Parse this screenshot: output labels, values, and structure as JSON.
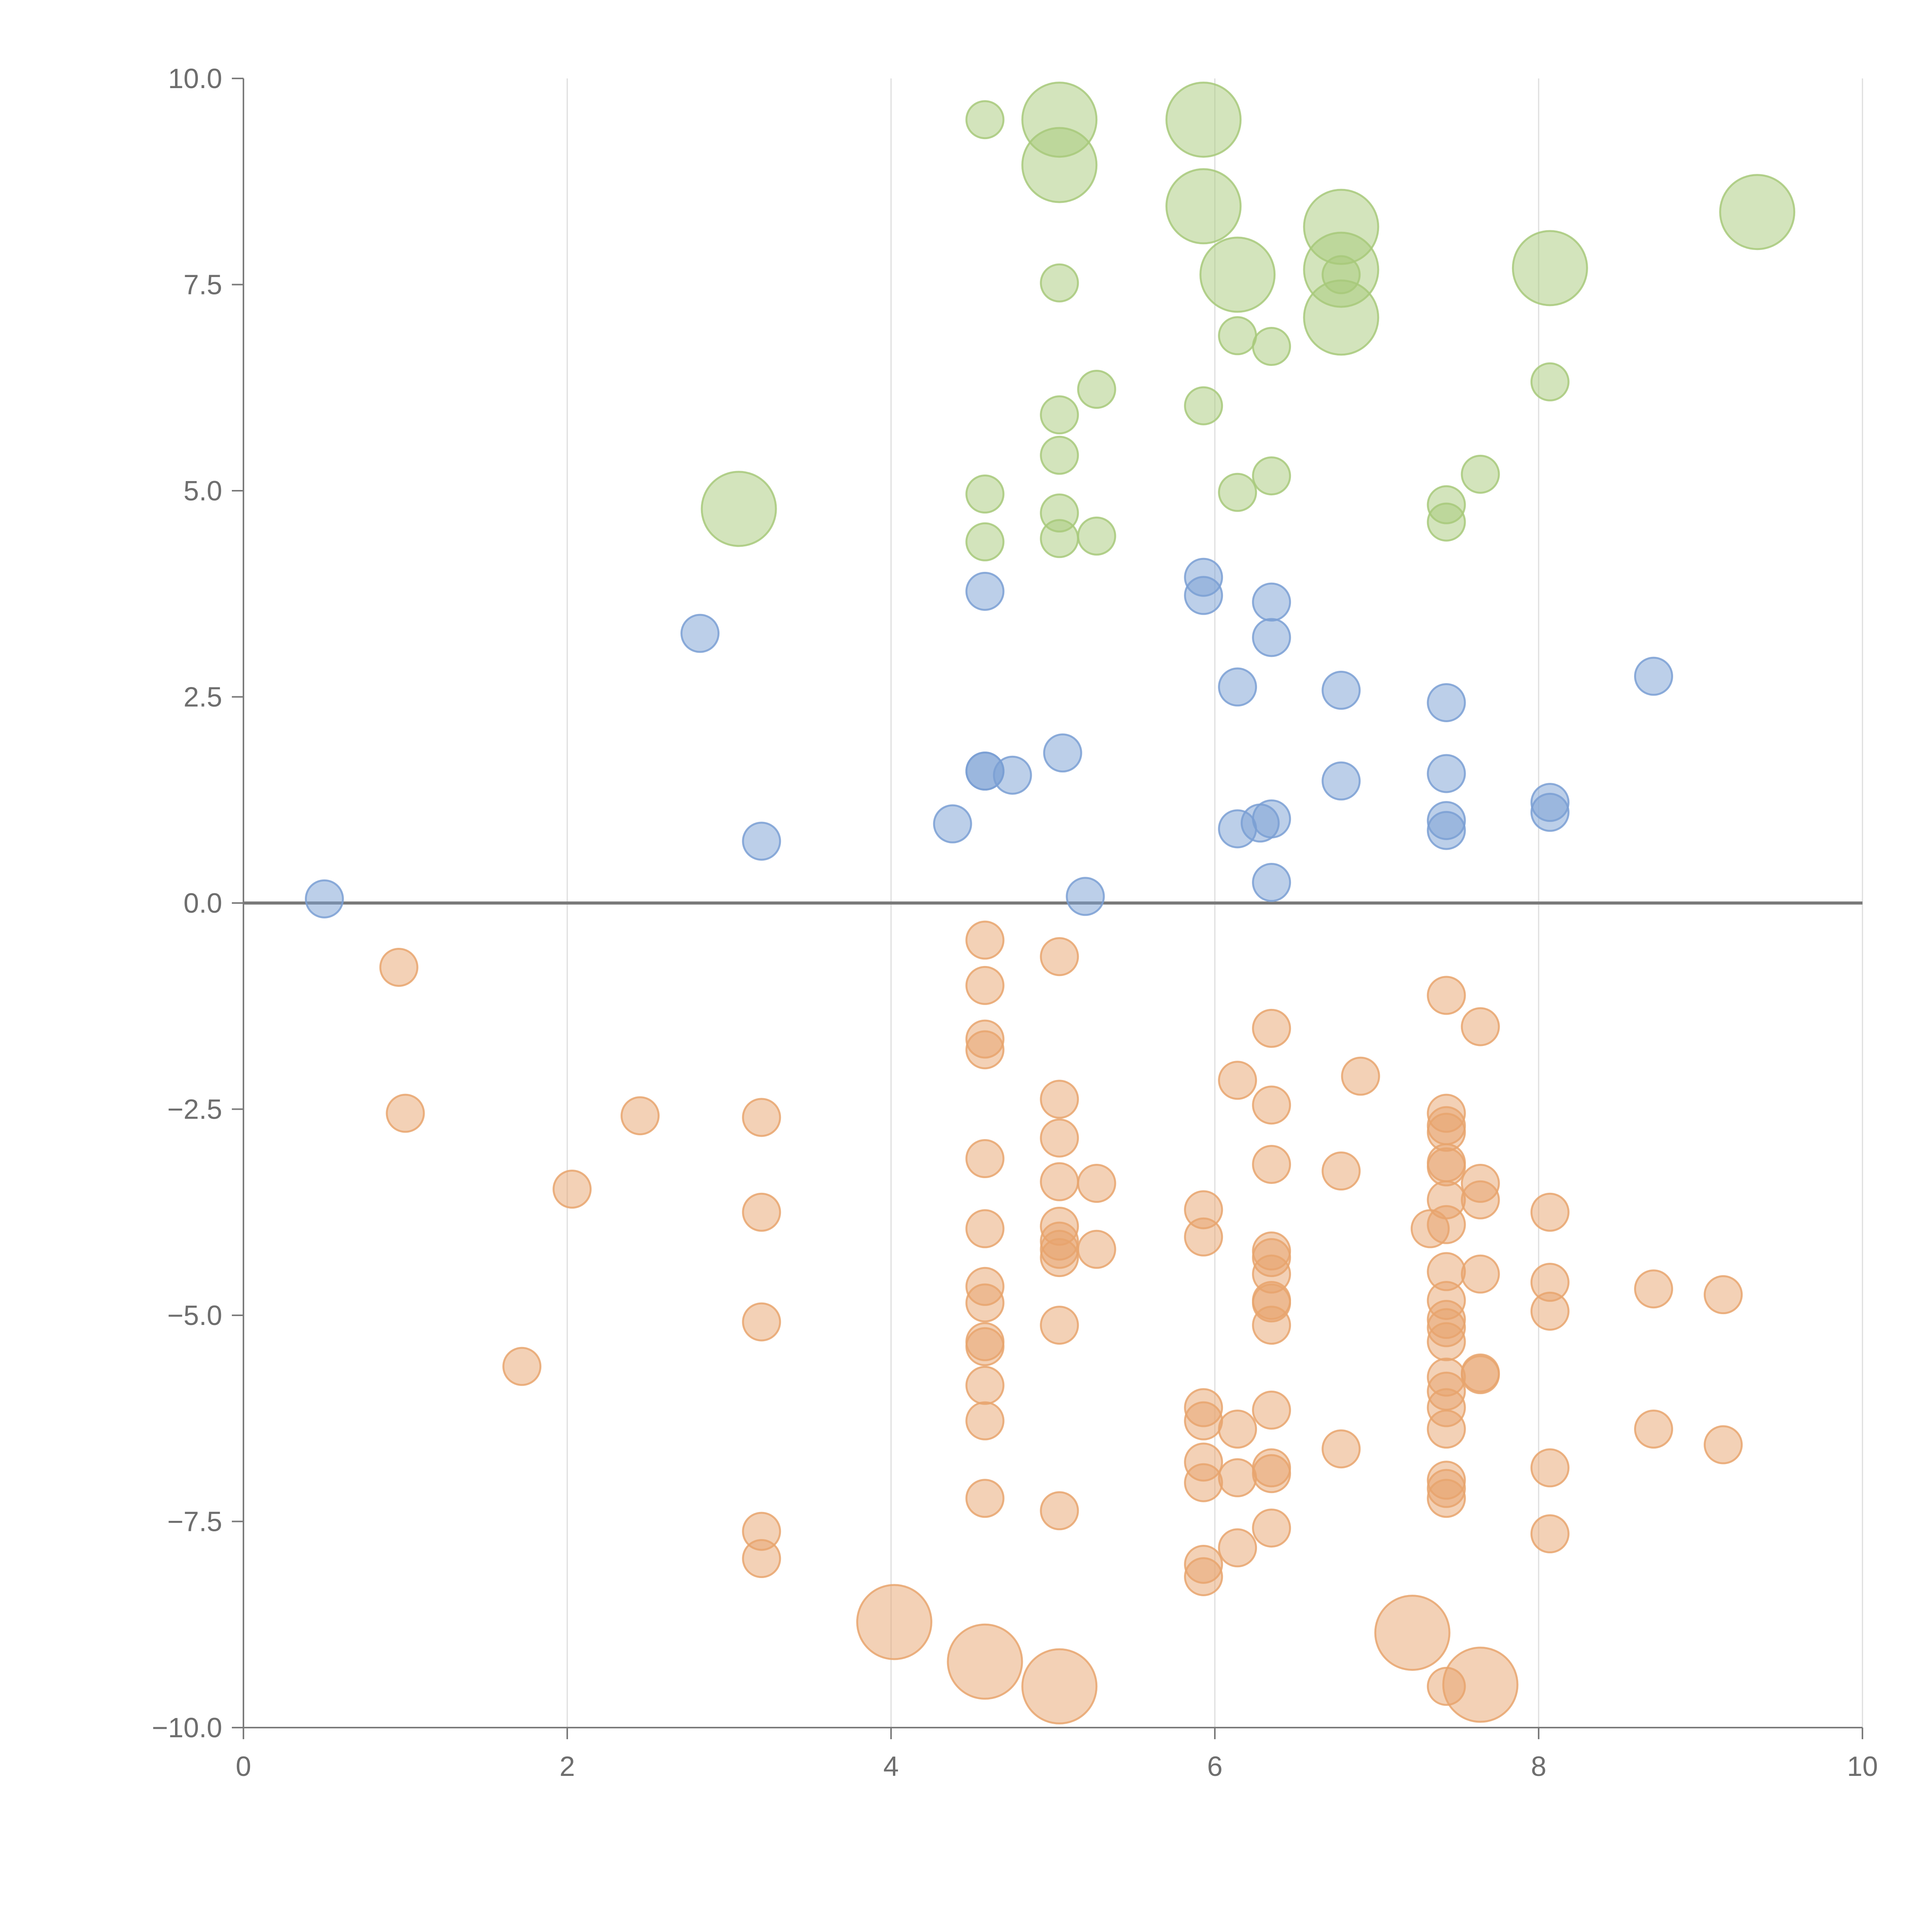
{
  "chart_data": {
    "type": "scatter",
    "title": "",
    "xlabel": "",
    "ylabel": "",
    "xlim": [
      0,
      10
    ],
    "ylim": [
      -10,
      10
    ],
    "x_ticks": [
      "0",
      "2",
      "4",
      "6",
      "8",
      "10"
    ],
    "x_tick_values": [
      0,
      2,
      4,
      6,
      8,
      10
    ],
    "y_ticks": [
      "10.0",
      "7.5",
      "5.0",
      "2.5",
      "0.0",
      "−2.5",
      "−5.0",
      "−7.5",
      "−10.0"
    ],
    "y_tick_values": [
      10,
      7.5,
      5,
      2.5,
      0,
      -2.5,
      -5,
      -7.5,
      -10
    ],
    "grid": "vertical lines at x ticks",
    "reference_line_y": 0,
    "colors": {
      "green": "#a7c97a",
      "blue": "#7a9fd3",
      "orange": "#e8a46d",
      "axis": "#7a7a7a",
      "grid": "#dddddd"
    },
    "series": [
      {
        "color": "green",
        "points": [
          {
            "x": 4.58,
            "y": 9.5,
            "s": 1
          },
          {
            "x": 5.04,
            "y": 9.5,
            "s": 2
          },
          {
            "x": 5.04,
            "y": 8.95,
            "s": 2
          },
          {
            "x": 5.93,
            "y": 9.5,
            "s": 2
          },
          {
            "x": 5.93,
            "y": 8.45,
            "s": 2
          },
          {
            "x": 6.14,
            "y": 7.62,
            "s": 2
          },
          {
            "x": 6.78,
            "y": 8.2,
            "s": 2
          },
          {
            "x": 6.78,
            "y": 7.68,
            "s": 2
          },
          {
            "x": 6.78,
            "y": 7.62,
            "s": 1
          },
          {
            "x": 6.78,
            "y": 7.1,
            "s": 2
          },
          {
            "x": 8.07,
            "y": 7.7,
            "s": 2
          },
          {
            "x": 9.35,
            "y": 8.38,
            "s": 2
          },
          {
            "x": 5.04,
            "y": 7.52,
            "s": 1
          },
          {
            "x": 6.14,
            "y": 6.88,
            "s": 1
          },
          {
            "x": 6.35,
            "y": 6.75,
            "s": 1
          },
          {
            "x": 5.27,
            "y": 6.23,
            "s": 1
          },
          {
            "x": 5.93,
            "y": 6.03,
            "s": 1
          },
          {
            "x": 5.04,
            "y": 5.92,
            "s": 1
          },
          {
            "x": 8.07,
            "y": 6.32,
            "s": 1
          },
          {
            "x": 5.04,
            "y": 5.43,
            "s": 1
          },
          {
            "x": 6.35,
            "y": 5.18,
            "s": 1
          },
          {
            "x": 7.64,
            "y": 5.2,
            "s": 1
          },
          {
            "x": 3.06,
            "y": 4.78,
            "s": 2
          },
          {
            "x": 4.58,
            "y": 4.96,
            "s": 1
          },
          {
            "x": 6.14,
            "y": 4.98,
            "s": 1
          },
          {
            "x": 5.04,
            "y": 4.73,
            "s": 1
          },
          {
            "x": 7.43,
            "y": 4.83,
            "s": 1
          },
          {
            "x": 7.43,
            "y": 4.62,
            "s": 1
          },
          {
            "x": 4.58,
            "y": 4.38,
            "s": 1
          },
          {
            "x": 5.04,
            "y": 4.42,
            "s": 1
          },
          {
            "x": 5.27,
            "y": 4.45,
            "s": 1
          }
        ]
      },
      {
        "color": "blue",
        "points": [
          {
            "x": 5.93,
            "y": 3.95,
            "s": 1
          },
          {
            "x": 5.93,
            "y": 3.73,
            "s": 1
          },
          {
            "x": 4.58,
            "y": 3.78,
            "s": 1
          },
          {
            "x": 6.35,
            "y": 3.65,
            "s": 1
          },
          {
            "x": 6.35,
            "y": 3.22,
            "s": 1
          },
          {
            "x": 2.82,
            "y": 3.27,
            "s": 1
          },
          {
            "x": 8.71,
            "y": 2.75,
            "s": 1
          },
          {
            "x": 6.14,
            "y": 2.62,
            "s": 1
          },
          {
            "x": 6.78,
            "y": 2.58,
            "s": 1
          },
          {
            "x": 7.43,
            "y": 2.43,
            "s": 1
          },
          {
            "x": 5.06,
            "y": 1.82,
            "s": 1
          },
          {
            "x": 4.58,
            "y": 1.6,
            "s": 1
          },
          {
            "x": 4.58,
            "y": 1.6,
            "s": 1
          },
          {
            "x": 4.75,
            "y": 1.55,
            "s": 1
          },
          {
            "x": 7.43,
            "y": 1.57,
            "s": 1
          },
          {
            "x": 6.78,
            "y": 1.48,
            "s": 1
          },
          {
            "x": 8.07,
            "y": 1.22,
            "s": 1
          },
          {
            "x": 8.07,
            "y": 1.1,
            "s": 1
          },
          {
            "x": 6.35,
            "y": 1.02,
            "s": 1
          },
          {
            "x": 6.28,
            "y": 0.97,
            "s": 1
          },
          {
            "x": 7.43,
            "y": 1.0,
            "s": 1
          },
          {
            "x": 4.38,
            "y": 0.96,
            "s": 1
          },
          {
            "x": 6.14,
            "y": 0.9,
            "s": 1
          },
          {
            "x": 7.43,
            "y": 0.88,
            "s": 1
          },
          {
            "x": 3.2,
            "y": 0.75,
            "s": 1
          },
          {
            "x": 6.35,
            "y": 0.25,
            "s": 1
          },
          {
            "x": 5.2,
            "y": 0.08,
            "s": 1
          },
          {
            "x": 0.5,
            "y": 0.05,
            "s": 1
          }
        ]
      },
      {
        "color": "orange",
        "points": [
          {
            "x": 4.58,
            "y": -0.45,
            "s": 1
          },
          {
            "x": 5.04,
            "y": -0.65,
            "s": 1
          },
          {
            "x": 0.96,
            "y": -0.78,
            "s": 1
          },
          {
            "x": 4.58,
            "y": -1.0,
            "s": 1
          },
          {
            "x": 7.43,
            "y": -1.12,
            "s": 1
          },
          {
            "x": 6.35,
            "y": -1.52,
            "s": 1
          },
          {
            "x": 7.64,
            "y": -1.5,
            "s": 1
          },
          {
            "x": 4.58,
            "y": -1.65,
            "s": 1
          },
          {
            "x": 4.58,
            "y": -1.78,
            "s": 1
          },
          {
            "x": 6.14,
            "y": -2.15,
            "s": 1
          },
          {
            "x": 6.9,
            "y": -2.1,
            "s": 1
          },
          {
            "x": 5.04,
            "y": -2.38,
            "s": 1
          },
          {
            "x": 6.35,
            "y": -2.45,
            "s": 1
          },
          {
            "x": 1.0,
            "y": -2.55,
            "s": 1
          },
          {
            "x": 2.45,
            "y": -2.58,
            "s": 1
          },
          {
            "x": 3.2,
            "y": -2.6,
            "s": 1
          },
          {
            "x": 7.43,
            "y": -2.55,
            "s": 1
          },
          {
            "x": 7.43,
            "y": -2.7,
            "s": 1
          },
          {
            "x": 7.43,
            "y": -2.78,
            "s": 1
          },
          {
            "x": 5.04,
            "y": -2.85,
            "s": 1
          },
          {
            "x": 4.58,
            "y": -3.1,
            "s": 1
          },
          {
            "x": 6.35,
            "y": -3.17,
            "s": 1
          },
          {
            "x": 7.43,
            "y": -3.15,
            "s": 1
          },
          {
            "x": 7.43,
            "y": -3.2,
            "s": 1
          },
          {
            "x": 6.78,
            "y": -3.25,
            "s": 1
          },
          {
            "x": 5.04,
            "y": -3.38,
            "s": 1
          },
          {
            "x": 5.27,
            "y": -3.4,
            "s": 1
          },
          {
            "x": 7.64,
            "y": -3.4,
            "s": 1
          },
          {
            "x": 2.03,
            "y": -3.47,
            "s": 1
          },
          {
            "x": 7.43,
            "y": -3.6,
            "s": 1
          },
          {
            "x": 7.64,
            "y": -3.6,
            "s": 1
          },
          {
            "x": 3.2,
            "y": -3.75,
            "s": 1
          },
          {
            "x": 5.93,
            "y": -3.72,
            "s": 1
          },
          {
            "x": 8.07,
            "y": -3.75,
            "s": 1
          },
          {
            "x": 7.33,
            "y": -3.95,
            "s": 1
          },
          {
            "x": 7.43,
            "y": -3.9,
            "s": 1
          },
          {
            "x": 4.58,
            "y": -3.95,
            "s": 1
          },
          {
            "x": 5.04,
            "y": -3.92,
            "s": 1
          },
          {
            "x": 5.93,
            "y": -4.05,
            "s": 1
          },
          {
            "x": 5.04,
            "y": -4.1,
            "s": 1
          },
          {
            "x": 5.04,
            "y": -4.2,
            "s": 1
          },
          {
            "x": 5.27,
            "y": -4.2,
            "s": 1
          },
          {
            "x": 6.35,
            "y": -4.22,
            "s": 1
          },
          {
            "x": 6.35,
            "y": -4.3,
            "s": 1
          },
          {
            "x": 5.04,
            "y": -4.3,
            "s": 1
          },
          {
            "x": 6.35,
            "y": -4.5,
            "s": 1
          },
          {
            "x": 7.43,
            "y": -4.47,
            "s": 1
          },
          {
            "x": 7.64,
            "y": -4.5,
            "s": 1
          },
          {
            "x": 8.07,
            "y": -4.6,
            "s": 1
          },
          {
            "x": 4.58,
            "y": -4.65,
            "s": 1
          },
          {
            "x": 8.71,
            "y": -4.68,
            "s": 1
          },
          {
            "x": 9.14,
            "y": -4.75,
            "s": 1
          },
          {
            "x": 4.58,
            "y": -4.85,
            "s": 1
          },
          {
            "x": 6.35,
            "y": -4.82,
            "s": 1
          },
          {
            "x": 6.35,
            "y": -4.85,
            "s": 1
          },
          {
            "x": 7.43,
            "y": -4.82,
            "s": 1
          },
          {
            "x": 8.07,
            "y": -4.95,
            "s": 1
          },
          {
            "x": 7.43,
            "y": -5.05,
            "s": 1
          },
          {
            "x": 3.2,
            "y": -5.08,
            "s": 1
          },
          {
            "x": 5.04,
            "y": -5.12,
            "s": 1
          },
          {
            "x": 6.35,
            "y": -5.12,
            "s": 1
          },
          {
            "x": 7.43,
            "y": -5.15,
            "s": 1
          },
          {
            "x": 4.58,
            "y": -5.32,
            "s": 1
          },
          {
            "x": 4.58,
            "y": -5.38,
            "s": 1
          },
          {
            "x": 7.43,
            "y": -5.32,
            "s": 1
          },
          {
            "x": 1.72,
            "y": -5.62,
            "s": 1
          },
          {
            "x": 7.64,
            "y": -5.7,
            "s": 1
          },
          {
            "x": 7.64,
            "y": -5.72,
            "s": 1
          },
          {
            "x": 7.43,
            "y": -5.75,
            "s": 1
          },
          {
            "x": 4.58,
            "y": -5.85,
            "s": 1
          },
          {
            "x": 7.43,
            "y": -5.92,
            "s": 1
          },
          {
            "x": 5.93,
            "y": -6.12,
            "s": 1
          },
          {
            "x": 6.35,
            "y": -6.15,
            "s": 1
          },
          {
            "x": 7.43,
            "y": -6.12,
            "s": 1
          },
          {
            "x": 4.58,
            "y": -6.28,
            "s": 1
          },
          {
            "x": 5.93,
            "y": -6.28,
            "s": 1
          },
          {
            "x": 6.14,
            "y": -6.38,
            "s": 1
          },
          {
            "x": 7.43,
            "y": -6.38,
            "s": 1
          },
          {
            "x": 8.71,
            "y": -6.38,
            "s": 1
          },
          {
            "x": 9.14,
            "y": -6.57,
            "s": 1
          },
          {
            "x": 6.78,
            "y": -6.62,
            "s": 1
          },
          {
            "x": 5.93,
            "y": -6.78,
            "s": 1
          },
          {
            "x": 8.07,
            "y": -6.85,
            "s": 1
          },
          {
            "x": 6.35,
            "y": -6.85,
            "s": 1
          },
          {
            "x": 6.35,
            "y": -6.92,
            "s": 1
          },
          {
            "x": 6.14,
            "y": -6.97,
            "s": 1
          },
          {
            "x": 7.43,
            "y": -7.0,
            "s": 1
          },
          {
            "x": 5.93,
            "y": -7.03,
            "s": 1
          },
          {
            "x": 7.43,
            "y": -7.1,
            "s": 1
          },
          {
            "x": 7.43,
            "y": -7.22,
            "s": 1
          },
          {
            "x": 4.58,
            "y": -7.22,
            "s": 1
          },
          {
            "x": 5.04,
            "y": -7.37,
            "s": 1
          },
          {
            "x": 6.35,
            "y": -7.58,
            "s": 1
          },
          {
            "x": 3.2,
            "y": -7.62,
            "s": 1
          },
          {
            "x": 8.07,
            "y": -7.65,
            "s": 1
          },
          {
            "x": 6.14,
            "y": -7.82,
            "s": 1
          },
          {
            "x": 3.2,
            "y": -7.95,
            "s": 1
          },
          {
            "x": 5.93,
            "y": -8.02,
            "s": 1
          },
          {
            "x": 5.93,
            "y": -8.17,
            "s": 1
          },
          {
            "x": 4.02,
            "y": -8.72,
            "s": 2
          },
          {
            "x": 7.22,
            "y": -8.85,
            "s": 2
          },
          {
            "x": 4.58,
            "y": -9.2,
            "s": 2
          },
          {
            "x": 5.04,
            "y": -9.5,
            "s": 2
          },
          {
            "x": 7.43,
            "y": -9.5,
            "s": 1
          },
          {
            "x": 7.64,
            "y": -9.48,
            "s": 2
          }
        ]
      }
    ]
  }
}
